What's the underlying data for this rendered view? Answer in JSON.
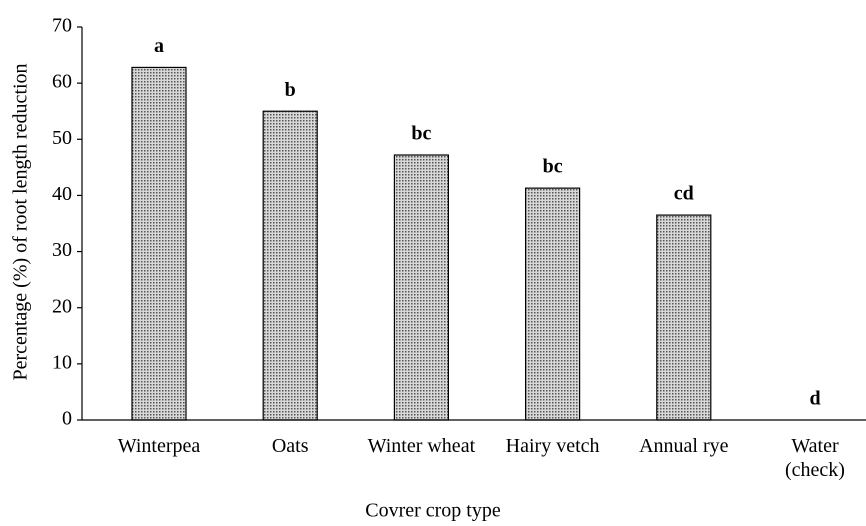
{
  "chart_data": {
    "type": "bar",
    "x_label": "Covrer crop type",
    "y_label": "Percentage (%) of root length reduction",
    "categories": [
      "Winterpea",
      "Oats",
      "Winter wheat",
      "Hairy vetch",
      "Annual rye",
      "Water\n(check)"
    ],
    "values": [
      62.8,
      55.0,
      47.2,
      41.3,
      36.5,
      0
    ],
    "annotations": [
      "a",
      "b",
      "bc",
      "bc",
      "cd",
      "d"
    ],
    "color": "#b0b0b0",
    "ylim": [
      0,
      70
    ],
    "yticks": [
      0,
      10,
      20,
      30,
      40,
      50,
      60,
      70
    ],
    "grid": false
  }
}
